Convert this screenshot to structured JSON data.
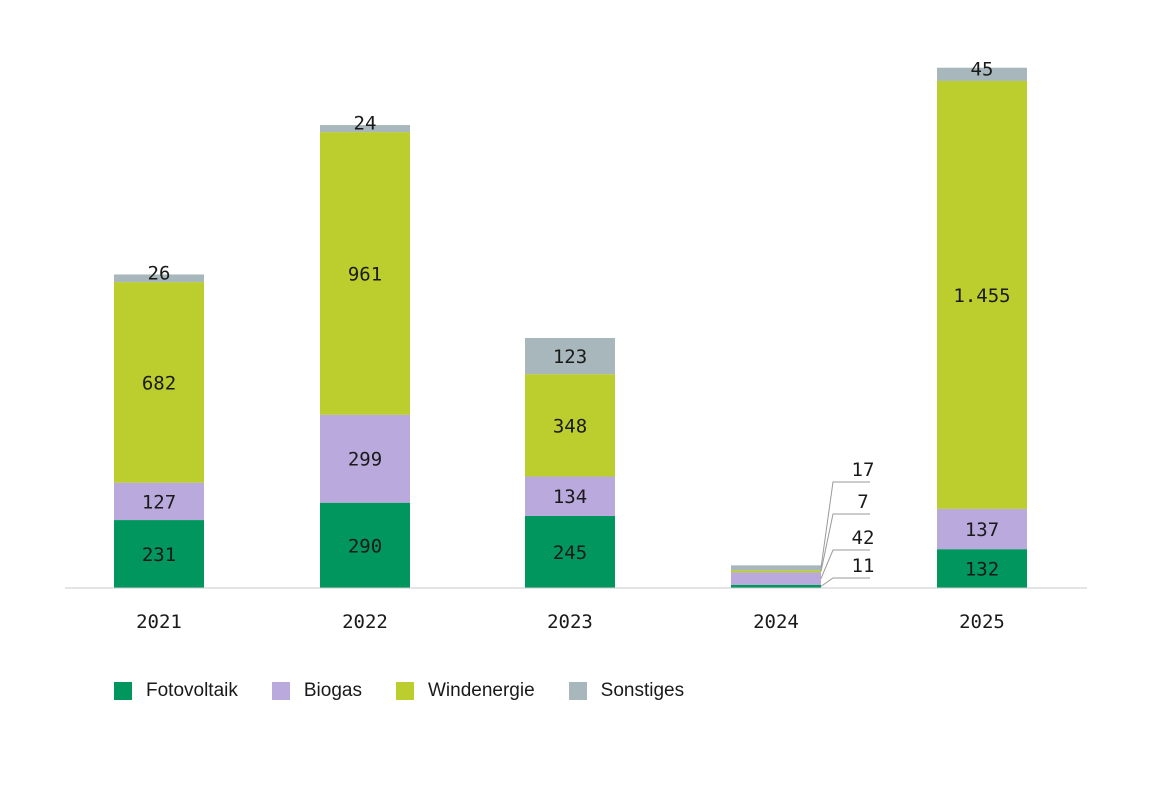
{
  "chart_data": {
    "type": "bar",
    "stacked": true,
    "categories": [
      "2021",
      "2022",
      "2023",
      "2024",
      "2025"
    ],
    "series": [
      {
        "name": "Fotovoltaik",
        "color": "#00965e",
        "values": [
          231,
          290,
          245,
          11,
          132
        ],
        "labels": [
          "231",
          "290",
          "245",
          "11",
          "132"
        ]
      },
      {
        "name": "Biogas",
        "color": "#b9a9dc",
        "values": [
          127,
          299,
          134,
          42,
          137
        ],
        "labels": [
          "127",
          "299",
          "134",
          "42",
          "137"
        ]
      },
      {
        "name": "Windenergie",
        "color": "#bccd2e",
        "values": [
          682,
          961,
          348,
          7,
          1455
        ],
        "labels": [
          "682",
          "961",
          "348",
          "7",
          "1.455"
        ]
      },
      {
        "name": "Sonstiges",
        "color": "#a8b7bb",
        "values": [
          26,
          24,
          123,
          17,
          45
        ],
        "labels": [
          "26",
          "24",
          "123",
          "17",
          "45"
        ]
      }
    ],
    "ylim": [
      0,
      1700
    ],
    "grid": false,
    "legend_position": "bottom-left",
    "callout_category": "2024"
  }
}
